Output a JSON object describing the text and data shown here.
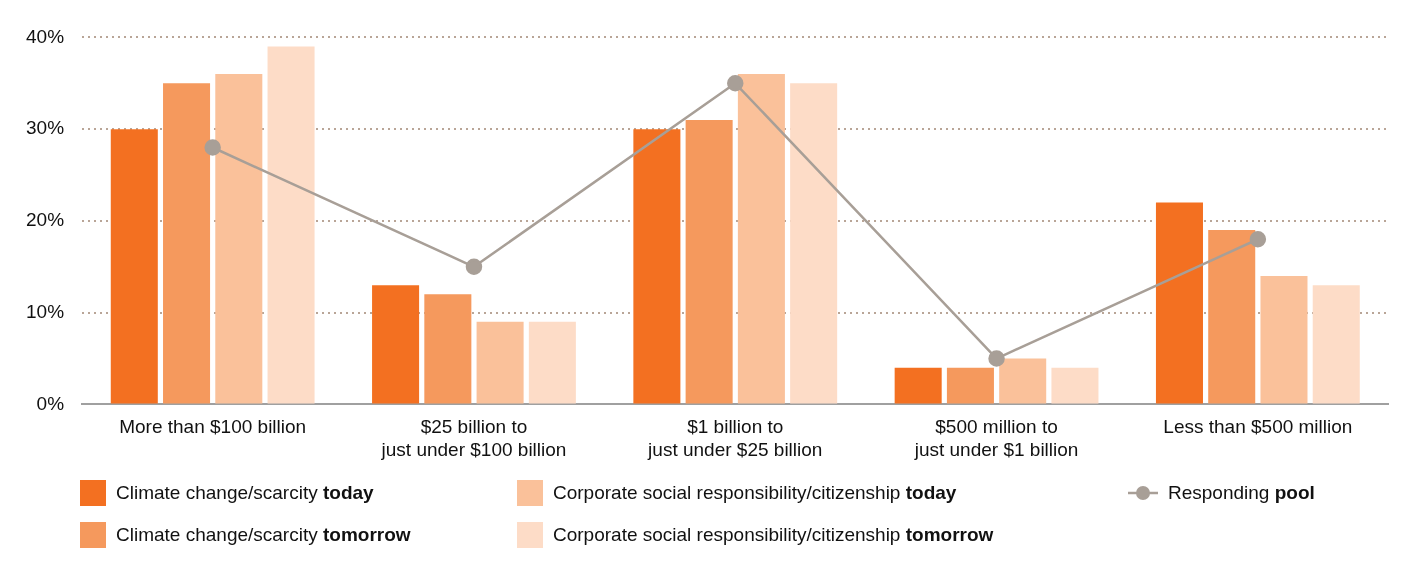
{
  "chart_data": {
    "type": "bar",
    "categories": [
      "More than $100 billion",
      "$25 billion to\njust under $100 billion",
      "$1 billion to\njust under $25 billion",
      "$500 million to\njust under $1 billion",
      "Less than $500 million"
    ],
    "series": [
      {
        "name": "Climate change/scarcity today",
        "color": "#f37021",
        "values": [
          30,
          13,
          30,
          4,
          22
        ]
      },
      {
        "name": "Climate change/scarcity tomorrow",
        "color": "#f5995d",
        "values": [
          35,
          12,
          31,
          4,
          19
        ]
      },
      {
        "name": "Corporate social responsibility/citizenship today",
        "color": "#fac19a",
        "values": [
          36,
          9,
          36,
          5,
          14
        ]
      },
      {
        "name": "Corporate social responsibility/citizenship tomorrow",
        "color": "#fddcc7",
        "values": [
          39,
          9,
          35,
          4,
          13
        ]
      },
      {
        "name": "Responding pool",
        "type": "line",
        "color": "#a89f97",
        "values": [
          28,
          15,
          35,
          5,
          18
        ]
      }
    ],
    "ylim": [
      0,
      40
    ],
    "yticks": [
      {
        "value": 0,
        "label": "0%"
      },
      {
        "value": 10,
        "label": "10%"
      },
      {
        "value": 20,
        "label": "20%"
      },
      {
        "value": 30,
        "label": "30%"
      },
      {
        "value": 40,
        "label": "40%"
      }
    ],
    "grid": "y",
    "legend": "bottom",
    "marker": "circle",
    "line_style": "solid"
  }
}
